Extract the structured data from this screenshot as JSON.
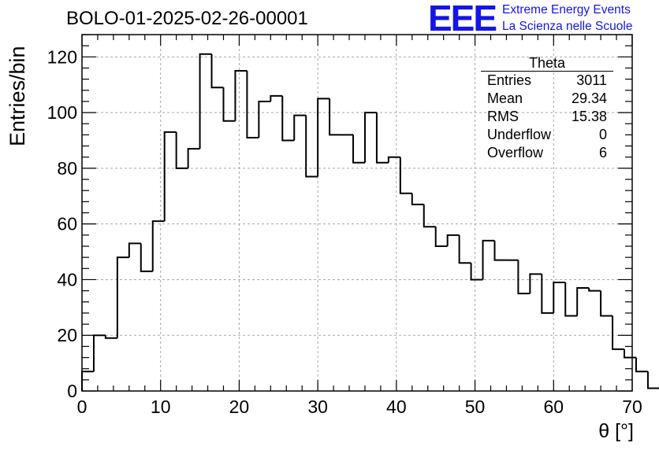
{
  "header": {
    "run_title": "BOLO-01-2025-02-26-00001",
    "logo_text": "EEE",
    "logo_line1": "Extreme Energy Events",
    "logo_line2": "La Scienza nelle Scuole"
  },
  "stats_box": {
    "title": "Theta",
    "rows": [
      {
        "label": "Entries",
        "value": "3011"
      },
      {
        "label": "Mean",
        "value": "29.34"
      },
      {
        "label": "RMS",
        "value": "15.38"
      },
      {
        "label": "Underflow",
        "value": "0"
      },
      {
        "label": "Overflow",
        "value": "6"
      }
    ]
  },
  "colors": {
    "line": "#000000",
    "grid": "#a8a8a8",
    "logo": "#1515e6"
  },
  "chart_data": {
    "type": "bar",
    "style": "step-histogram",
    "title": "BOLO-01-2025-02-26-00001",
    "xlabel": "θ [°]",
    "ylabel": "Entries/bin",
    "xlim": [
      0,
      70
    ],
    "ylim": [
      0,
      128
    ],
    "grid": true,
    "x_ticks": [
      0,
      10,
      20,
      30,
      40,
      50,
      60,
      70
    ],
    "y_ticks": [
      0,
      20,
      40,
      60,
      80,
      100,
      120
    ],
    "bin_width": 1.5,
    "bin_start": 0,
    "series": [
      {
        "name": "Theta",
        "values": [
          7,
          20,
          19,
          48,
          53,
          43,
          61,
          93,
          80,
          87,
          121,
          109,
          97,
          115,
          91,
          104,
          106,
          90,
          99,
          77,
          105,
          92,
          92,
          82,
          100,
          82,
          84,
          71,
          67,
          59,
          52,
          56,
          46,
          40,
          54,
          47,
          47,
          35,
          42,
          28,
          39,
          27,
          37,
          36,
          27,
          15,
          12,
          7,
          1,
          2
        ]
      }
    ]
  }
}
